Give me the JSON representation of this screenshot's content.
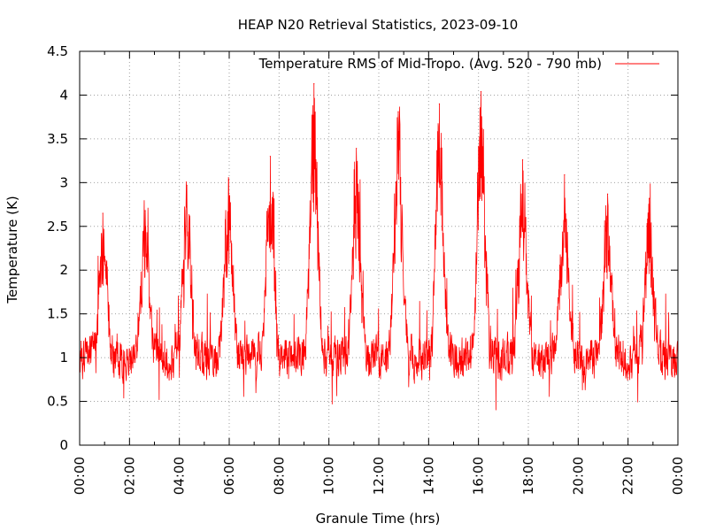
{
  "chart_data": {
    "type": "line",
    "title": "HEAP N20 Retrieval Statistics, 2023-09-10",
    "xlabel": "Granule Time (hrs)",
    "ylabel": "Temperature (K)",
    "xlim": [
      0,
      24
    ],
    "ylim": [
      0,
      4.5
    ],
    "grid": true,
    "legend_position": "top-right",
    "x_ticks": [
      "00:00",
      "02:00",
      "04:00",
      "06:00",
      "08:00",
      "10:00",
      "12:00",
      "14:00",
      "16:00",
      "18:00",
      "20:00",
      "22:00",
      "00:00"
    ],
    "y_ticks": [
      "0",
      "0.5",
      "1",
      "1.5",
      "2",
      "2.5",
      "3",
      "3.5",
      "4",
      "4.5"
    ],
    "series": [
      {
        "name": "Temperature RMS of Mid-Tropo. (Avg. 520 - 790 mb)",
        "color": "#ff0000",
        "x_unit": "hours",
        "baseline": 1.0,
        "baseline_range": [
          0.45,
          1.7
        ],
        "peaks": [
          {
            "x": 0.93,
            "y": 2.65
          },
          {
            "x": 2.63,
            "y": 2.68
          },
          {
            "x": 4.3,
            "y": 2.97
          },
          {
            "x": 5.98,
            "y": 3.03
          },
          {
            "x": 7.65,
            "y": 3.3
          },
          {
            "x": 9.4,
            "y": 4.13
          },
          {
            "x": 11.1,
            "y": 3.39
          },
          {
            "x": 12.78,
            "y": 3.81
          },
          {
            "x": 14.43,
            "y": 3.9
          },
          {
            "x": 16.1,
            "y": 4.04
          },
          {
            "x": 17.77,
            "y": 3.26
          },
          {
            "x": 19.45,
            "y": 3.09
          },
          {
            "x": 21.18,
            "y": 2.87
          },
          {
            "x": 22.85,
            "y": 2.82
          }
        ],
        "minimum": {
          "x": 16.7,
          "y": 0.4
        }
      }
    ]
  }
}
